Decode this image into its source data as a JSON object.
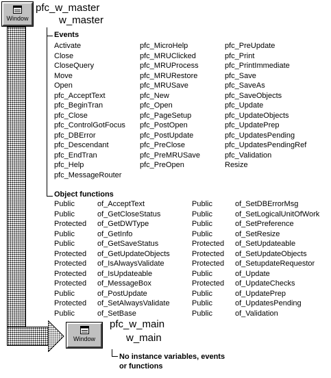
{
  "icon_label": "Window",
  "master": {
    "name": "pfc_w_master",
    "internal_name": "w_master"
  },
  "events": {
    "heading": "Events",
    "columns": [
      [
        "Activate",
        "Close",
        "CloseQuery",
        "Move",
        "Open",
        "pfc_AcceptText",
        "pfc_BeginTran",
        "pfc_Close",
        "pfc_ControlGotFocus",
        "pfc_DBError",
        "pfc_Descendant",
        "pfc_EndTran",
        "pfc_Help",
        "pfc_MessageRouter"
      ],
      [
        "pfc_MicroHelp",
        "pfc_MRUClicked",
        "pfc_MRUProcess",
        "pfc_MRURestore",
        "pfc_MRUSave",
        "pfc_New",
        "pfc_Open",
        "pfc_PageSetup",
        "pfc_PostOpen",
        "pfc_PostUpdate",
        "pfc_PreClose",
        "pfc_PreMRUSave",
        "pfc_PreOpen"
      ],
      [
        "pfc_PreUpdate",
        "pfc_Print",
        "pfc_PrintImmediate",
        "pfc_Save",
        "pfc_SaveAs",
        "pfc_SaveObjects",
        "pfc_Update",
        "pfc_UpdateObjects",
        "pfc_UpdatePrep",
        "pfc_UpdatesPending",
        "pfc_UpdatesPendingRef",
        "pfc_Validation",
        "Resize"
      ]
    ]
  },
  "object_functions": {
    "heading": "Object functions",
    "left": [
      {
        "access": "Public",
        "name": "of_AcceptText"
      },
      {
        "access": "Public",
        "name": "of_GetCloseStatus"
      },
      {
        "access": "Protected",
        "name": "of_GetDWType"
      },
      {
        "access": "Public",
        "name": "of_GetInfo"
      },
      {
        "access": "Public",
        "name": "of_GetSaveStatus"
      },
      {
        "access": "Protected",
        "name": "of_GetUpdateObjects"
      },
      {
        "access": "Protected",
        "name": "of_IsAlwaysValidate"
      },
      {
        "access": "Protected",
        "name": "of_IsUpdateable"
      },
      {
        "access": "Protected",
        "name": "of_MessageBox"
      },
      {
        "access": "Public",
        "name": "of_PostUpdate"
      },
      {
        "access": "Protected",
        "name": "of_SetAlwaysValidate"
      },
      {
        "access": "Public",
        "name": "of_SetBase"
      }
    ],
    "right": [
      {
        "access": "Public",
        "name": "of_SetDBErrorMsg"
      },
      {
        "access": "Public",
        "name": "of_SetLogicalUnitOfWork"
      },
      {
        "access": "Public",
        "name": "of_SetPreference"
      },
      {
        "access": "Public",
        "name": "of_SetResize"
      },
      {
        "access": "Protected",
        "name": "of_SetUpdateable"
      },
      {
        "access": "Protected",
        "name": "of_SetUpdateObjects"
      },
      {
        "access": "Protected",
        "name": "of_SetupdateRequestor"
      },
      {
        "access": "Public",
        "name": "of_Update"
      },
      {
        "access": "Protected",
        "name": "of_UpdateChecks"
      },
      {
        "access": "Public",
        "name": "of_UpdatePrep"
      },
      {
        "access": "Public",
        "name": "of_UpdatesPending"
      },
      {
        "access": "Public",
        "name": "of_Validation"
      }
    ]
  },
  "main": {
    "name": "pfc_w_main",
    "internal_name": "w_main",
    "note_line1": "No instance variables, events",
    "note_line2": "or functions"
  }
}
